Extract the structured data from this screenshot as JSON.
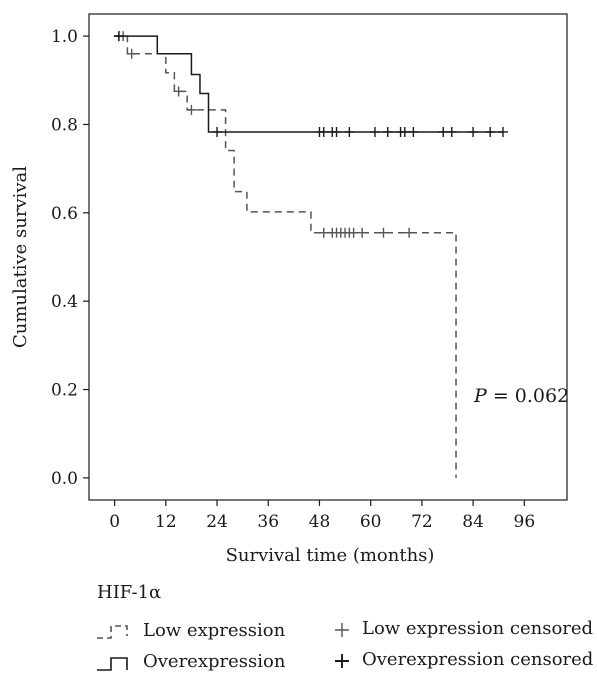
{
  "chart_data": {
    "type": "line",
    "xlabel": "Survival time (months)",
    "ylabel": "Cumulative survival",
    "xlim": [
      -6,
      106
    ],
    "ylim": [
      -0.05,
      1.05
    ],
    "xticks": [
      0,
      12,
      24,
      36,
      48,
      60,
      72,
      84,
      96
    ],
    "yticks": [
      0.0,
      0.2,
      0.4,
      0.6,
      0.8,
      1.0
    ],
    "ytick_labels": [
      "0.0",
      "0.2",
      "0.4",
      "0.6",
      "0.8",
      "1.0"
    ],
    "annotation": {
      "italic": "P",
      "rest": " = 0.062",
      "x": 83,
      "y": 0.2
    },
    "series": [
      {
        "name": "Low expression",
        "style": "dashed",
        "color": "#555555",
        "steps": [
          [
            0,
            1.0
          ],
          [
            3,
            0.96
          ],
          [
            12,
            0.917
          ],
          [
            14,
            0.875
          ],
          [
            17,
            0.833
          ],
          [
            26,
            0.741
          ],
          [
            28,
            0.648
          ],
          [
            31,
            0.602
          ],
          [
            46,
            0.555
          ],
          [
            80,
            0.0
          ]
        ],
        "censored_x": [
          1,
          2,
          4,
          15,
          18,
          49,
          51,
          52,
          53,
          54,
          55,
          56,
          58,
          63,
          69
        ]
      },
      {
        "name": "Overexpression",
        "style": "solid",
        "color": "#1a1a1a",
        "steps": [
          [
            0,
            1.0
          ],
          [
            10,
            0.96
          ],
          [
            18,
            0.913
          ],
          [
            20,
            0.87
          ],
          [
            22,
            0.783
          ]
        ],
        "end_x": 91,
        "censored_x": [
          1,
          24,
          48,
          49,
          51,
          52,
          55,
          61,
          64,
          67,
          68,
          70,
          77,
          79,
          84,
          88,
          91
        ]
      }
    ]
  },
  "legend": {
    "title": "HIF-1α",
    "low_label": "Low expression",
    "over_label": "Overexpression",
    "low_censored_label": "Low expression censored",
    "over_censored_label": "Overexpression censored"
  }
}
